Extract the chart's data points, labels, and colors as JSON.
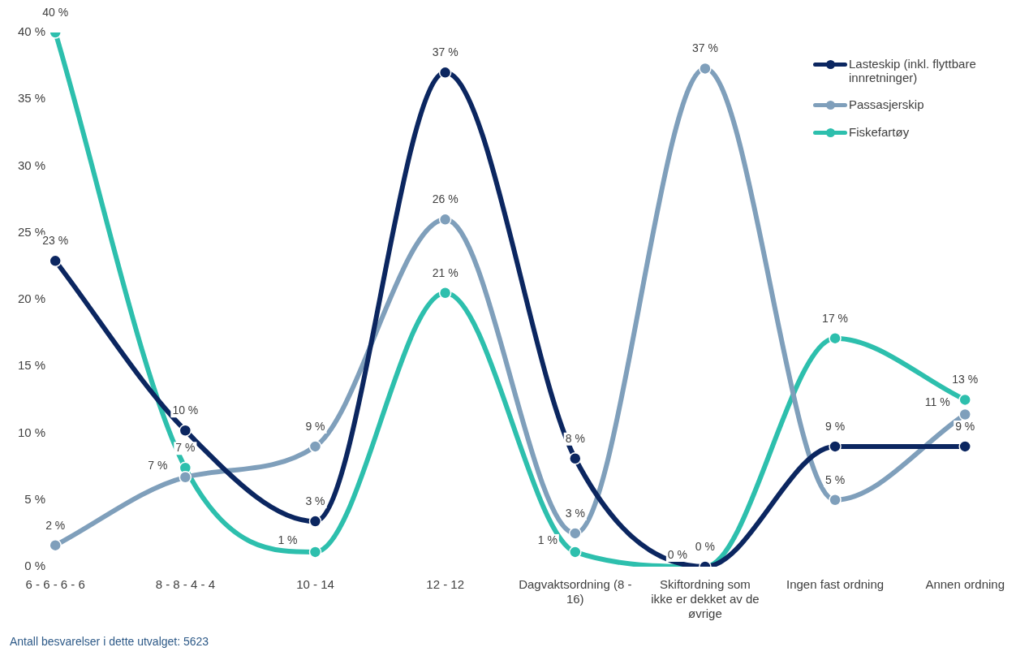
{
  "chart_data": {
    "type": "line",
    "categories": [
      "6 - 6 - 6 - 6",
      "8 - 8 - 4 - 4",
      "10 - 14",
      "12 - 12",
      "Dagvaktsordning (8 - 16)",
      "Skiftordning som ikke er dekket av de øvrige",
      "Ingen fast ordning",
      "Annen ordning"
    ],
    "series": [
      {
        "name": "Lasteskip (inkl. flyttbare innretninger)",
        "color": "#0b2660",
        "values": [
          22.9,
          10.2,
          3.4,
          37,
          8.1,
          0,
          9,
          9
        ],
        "value_labels": [
          "23 %",
          "10 %",
          "3 %",
          "37 %",
          "8 %",
          "0 %",
          "9 %",
          "9 %"
        ]
      },
      {
        "name": "Passasjerskip",
        "color": "#7f9fbb",
        "values": [
          1.6,
          6.7,
          9,
          26,
          2.5,
          37.3,
          5,
          11.4
        ],
        "value_labels": [
          "2 %",
          "7 %",
          "9 %",
          "26 %",
          "3 %",
          "37 %",
          "5 %",
          "11 %"
        ]
      },
      {
        "name": "Fiskefartøy",
        "color": "#2dbfad",
        "values": [
          40,
          7.4,
          1.1,
          20.5,
          1.1,
          0,
          17.1,
          12.5
        ],
        "value_labels": [
          "40 %",
          "7 %",
          "1 %",
          "21 %",
          "1 %",
          "0 %",
          "17 %",
          "13 %"
        ]
      }
    ],
    "ylim": [
      0,
      40
    ],
    "yticks": [
      {
        "value": 0,
        "label": "0 %"
      },
      {
        "value": 5,
        "label": "5 %"
      },
      {
        "value": 10,
        "label": "10 %"
      },
      {
        "value": 15,
        "label": "15 %"
      },
      {
        "value": 20,
        "label": "20 %"
      },
      {
        "value": 25,
        "label": "25 %"
      },
      {
        "value": 30,
        "label": "30 %"
      },
      {
        "value": 35,
        "label": "35 %"
      },
      {
        "value": 40,
        "label": "40 %"
      }
    ],
    "grid": false,
    "legend": "top right",
    "marker": "circle",
    "line_style": "solid",
    "annotations": [
      "Antall besvarelser i dette utvalget: 5623"
    ]
  }
}
